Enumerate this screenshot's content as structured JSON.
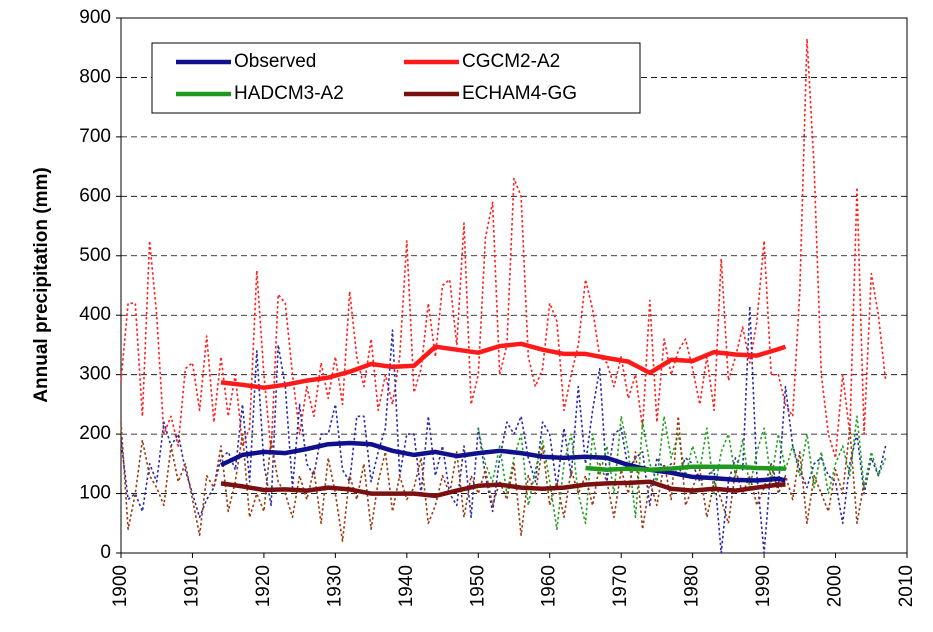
{
  "chart_data": {
    "type": "line",
    "y_label": "Annual precipitation (mm)",
    "xlim": [
      1900,
      2010
    ],
    "xticks": [
      1900,
      1910,
      1920,
      1930,
      1940,
      1950,
      1960,
      1970,
      1980,
      1990,
      2000,
      2010
    ],
    "ylim": [
      0,
      900
    ],
    "yticks": [
      0,
      100,
      200,
      300,
      400,
      500,
      600,
      700,
      800,
      900
    ],
    "grid": true,
    "legend": "top-left",
    "series": [
      {
        "color": "#ff2020",
        "style": "dotted",
        "x": [
          1900,
          1901,
          1902,
          1903,
          1904,
          1905,
          1906,
          1907,
          1908,
          1909,
          1910,
          1911,
          1912,
          1913,
          1914,
          1915,
          1916,
          1917,
          1918,
          1919,
          1920,
          1921,
          1922,
          1923,
          1924,
          1925,
          1926,
          1927,
          1928,
          1929,
          1930,
          1931,
          1932,
          1933,
          1934,
          1935,
          1936,
          1937,
          1938,
          1939,
          1940,
          1941,
          1942,
          1943,
          1944,
          1945,
          1946,
          1947,
          1948,
          1949,
          1950,
          1951,
          1952,
          1953,
          1954,
          1955,
          1956,
          1957,
          1958,
          1959,
          1960,
          1961,
          1962,
          1963,
          1964,
          1965,
          1966,
          1967,
          1968,
          1969,
          1970,
          1971,
          1972,
          1973,
          1974,
          1975,
          1976,
          1977,
          1978,
          1979,
          1980,
          1981,
          1982,
          1983,
          1984,
          1985,
          1986,
          1987,
          1988,
          1989,
          1990,
          1991,
          1992,
          1993,
          1994,
          1995,
          1996,
          1997,
          1998,
          1999,
          2000,
          2001,
          2002,
          2003,
          2004,
          2005,
          2006,
          2007
        ],
        "values": [
          290,
          420,
          420,
          230,
          525,
          400,
          200,
          230,
          180,
          310,
          320,
          240,
          365,
          220,
          330,
          230,
          300,
          180,
          210,
          475,
          300,
          170,
          435,
          420,
          300,
          200,
          280,
          230,
          320,
          260,
          330,
          250,
          440,
          330,
          280,
          360,
          240,
          300,
          250,
          330,
          525,
          270,
          310,
          420,
          330,
          450,
          460,
          350,
          555,
          250,
          300,
          530,
          590,
          300,
          350,
          630,
          600,
          330,
          280,
          310,
          420,
          390,
          240,
          300,
          350,
          460,
          410,
          330,
          320,
          280,
          330,
          260,
          300,
          210,
          425,
          220,
          360,
          300,
          340,
          360,
          310,
          250,
          330,
          240,
          495,
          290,
          330,
          380,
          320,
          390,
          525,
          300,
          300,
          250,
          230,
          440,
          865,
          650,
          300,
          200,
          160,
          300,
          200,
          615,
          200,
          470,
          400,
          290
        ]
      },
      {
        "color": "#2a2aa8",
        "style": "dotted",
        "x": [
          1900,
          1901,
          1902,
          1903,
          1904,
          1905,
          1906,
          1907,
          1908,
          1909,
          1910,
          1911,
          1912,
          1913,
          1914,
          1915,
          1916,
          1917,
          1918,
          1919,
          1920,
          1921,
          1922,
          1923,
          1924,
          1925,
          1926,
          1927,
          1928,
          1929,
          1930,
          1931,
          1932,
          1933,
          1934,
          1935,
          1936,
          1937,
          1938,
          1939,
          1940,
          1941,
          1942,
          1943,
          1944,
          1945,
          1946,
          1947,
          1948,
          1949,
          1950,
          1951,
          1952,
          1953,
          1954,
          1955,
          1956,
          1957,
          1958,
          1959,
          1960,
          1961,
          1962,
          1963,
          1964,
          1965,
          1966,
          1967,
          1968,
          1969,
          1970,
          1971,
          1972,
          1973,
          1974,
          1975,
          1976,
          1977,
          1978,
          1979,
          1980,
          1981,
          1982,
          1983,
          1984,
          1985,
          1986,
          1987,
          1988,
          1989,
          1990,
          1991,
          1992,
          1993,
          1994,
          1995,
          1996,
          1997,
          1998,
          1999,
          2000,
          2001,
          2002,
          2003,
          2004,
          2005,
          2006,
          2007
        ],
        "values": [
          190,
          90,
          100,
          70,
          150,
          120,
          220,
          180,
          200,
          140,
          100,
          60,
          90,
          110,
          160,
          170,
          140,
          250,
          120,
          340,
          150,
          80,
          350,
          280,
          110,
          250,
          150,
          130,
          200,
          200,
          250,
          140,
          120,
          230,
          230,
          120,
          170,
          210,
          375,
          130,
          200,
          200,
          100,
          230,
          130,
          180,
          100,
          80,
          180,
          60,
          210,
          130,
          70,
          160,
          220,
          200,
          230,
          160,
          120,
          220,
          200,
          110,
          210,
          130,
          280,
          150,
          240,
          310,
          120,
          200,
          210,
          140,
          160,
          170,
          80,
          160,
          140,
          150,
          130,
          160,
          150,
          120,
          130,
          140,
          0,
          120,
          160,
          140,
          415,
          130,
          0,
          150,
          110,
          280,
          180,
          140,
          110,
          150,
          160,
          130,
          120,
          50,
          150,
          200,
          100,
          160,
          130,
          180
        ]
      },
      {
        "color": "#22a022",
        "style": "dotted",
        "x": [
          1950,
          1951,
          1952,
          1953,
          1954,
          1955,
          1956,
          1957,
          1958,
          1959,
          1960,
          1961,
          1962,
          1963,
          1964,
          1965,
          1966,
          1967,
          1968,
          1969,
          1970,
          1971,
          1972,
          1973,
          1974,
          1975,
          1976,
          1977,
          1978,
          1979,
          1980,
          1981,
          1982,
          1983,
          1984,
          1985,
          1986,
          1987,
          1988,
          1989,
          1990,
          1991,
          1992,
          1993,
          1994,
          1995,
          1996,
          1997,
          1998,
          1999,
          2000,
          2001,
          2002,
          2003,
          2004,
          2005,
          2006,
          2007
        ],
        "values": [
          210,
          150,
          120,
          180,
          100,
          160,
          200,
          80,
          140,
          190,
          120,
          40,
          150,
          200,
          100,
          50,
          200,
          130,
          180,
          100,
          230,
          170,
          60,
          220,
          150,
          120,
          230,
          160,
          200,
          130,
          180,
          140,
          210,
          100,
          170,
          200,
          130,
          190,
          110,
          170,
          210,
          120,
          200,
          140,
          180,
          130,
          200,
          110,
          170,
          100,
          150,
          180,
          130,
          230,
          110,
          170,
          130,
          160
        ]
      },
      {
        "color": "#9a3a10",
        "style": "dotted",
        "x": [
          1900,
          1901,
          1902,
          1903,
          1904,
          1905,
          1906,
          1907,
          1908,
          1909,
          1910,
          1911,
          1912,
          1913,
          1914,
          1915,
          1916,
          1917,
          1918,
          1919,
          1920,
          1921,
          1922,
          1923,
          1924,
          1925,
          1926,
          1927,
          1928,
          1929,
          1930,
          1931,
          1932,
          1933,
          1934,
          1935,
          1936,
          1937,
          1938,
          1939,
          1940,
          1941,
          1942,
          1943,
          1944,
          1945,
          1946,
          1947,
          1948,
          1949,
          1950,
          1951,
          1952,
          1953,
          1954,
          1955,
          1956,
          1957,
          1958,
          1959,
          1960,
          1961,
          1962,
          1963,
          1964,
          1965,
          1966,
          1967,
          1968,
          1969,
          1970,
          1971,
          1972,
          1973,
          1974,
          1975,
          1976,
          1977,
          1978,
          1979,
          1980,
          1981,
          1982,
          1983,
          1984,
          1985,
          1986,
          1987,
          1988,
          1989,
          1990,
          1991,
          1992,
          1993,
          1994,
          1995,
          1996,
          1997,
          1998,
          1999,
          2000,
          2001,
          2002,
          2003,
          2004
        ],
        "values": [
          220,
          40,
          100,
          190,
          130,
          110,
          80,
          180,
          120,
          150,
          90,
          30,
          130,
          110,
          180,
          70,
          120,
          200,
          60,
          100,
          70,
          190,
          120,
          100,
          60,
          130,
          90,
          140,
          50,
          160,
          100,
          20,
          130,
          90,
          150,
          40,
          120,
          170,
          70,
          130,
          90,
          110,
          160,
          50,
          80,
          130,
          100,
          170,
          60,
          130,
          100,
          140,
          80,
          120,
          90,
          150,
          30,
          130,
          100,
          180,
          80,
          120,
          60,
          140,
          100,
          130,
          80,
          150,
          120,
          60,
          140,
          100,
          170,
          40,
          120,
          80,
          150,
          90,
          230,
          80,
          110,
          140,
          60,
          120,
          90,
          50,
          140,
          100,
          130,
          80,
          110,
          150,
          100,
          130,
          90,
          170,
          50,
          130,
          100,
          70,
          140,
          100,
          210,
          50,
          120
        ]
      },
      {
        "name": "Observed",
        "color": "#10108c",
        "style": "solid",
        "x": [
          1914,
          1917,
          1920,
          1923,
          1926,
          1929,
          1932,
          1935,
          1938,
          1941,
          1944,
          1947,
          1950,
          1953,
          1956,
          1959,
          1962,
          1965,
          1968,
          1971,
          1974,
          1977,
          1980,
          1983,
          1986,
          1989,
          1992,
          1993
        ],
        "values": [
          148,
          165,
          170,
          168,
          175,
          183,
          185,
          183,
          172,
          165,
          170,
          163,
          168,
          172,
          168,
          162,
          160,
          162,
          160,
          148,
          140,
          135,
          128,
          126,
          123,
          122,
          125,
          122
        ]
      },
      {
        "name": "CGCM2-A2",
        "color": "#ff1a1a",
        "style": "solid",
        "x": [
          1914,
          1917,
          1920,
          1923,
          1926,
          1929,
          1932,
          1935,
          1938,
          1941,
          1944,
          1947,
          1950,
          1953,
          1956,
          1959,
          1962,
          1965,
          1968,
          1971,
          1974,
          1977,
          1980,
          1983,
          1986,
          1989,
          1992,
          1993
        ],
        "values": [
          287,
          283,
          278,
          283,
          290,
          295,
          305,
          318,
          313,
          315,
          347,
          342,
          337,
          348,
          352,
          342,
          335,
          335,
          328,
          322,
          303,
          325,
          323,
          338,
          334,
          332,
          343,
          347
        ]
      },
      {
        "name": "HADCM3-A2",
        "color": "#1f9a1f",
        "style": "solid",
        "x": [
          1965,
          1968,
          1971,
          1974,
          1977,
          1980,
          1983,
          1986,
          1989,
          1992,
          1993
        ],
        "values": [
          143,
          140,
          142,
          140,
          142,
          145,
          145,
          145,
          143,
          142,
          142
        ]
      },
      {
        "name": "ECHAM4-GG",
        "color": "#7a1010",
        "style": "solid",
        "x": [
          1914,
          1917,
          1920,
          1923,
          1926,
          1929,
          1932,
          1935,
          1938,
          1941,
          1944,
          1947,
          1950,
          1953,
          1956,
          1959,
          1962,
          1965,
          1968,
          1971,
          1974,
          1977,
          1980,
          1983,
          1986,
          1989,
          1992,
          1993
        ],
        "values": [
          117,
          112,
          106,
          107,
          105,
          110,
          107,
          100,
          100,
          100,
          96,
          105,
          113,
          115,
          110,
          108,
          110,
          115,
          117,
          118,
          120,
          108,
          105,
          108,
          105,
          110,
          115,
          115
        ]
      }
    ]
  }
}
